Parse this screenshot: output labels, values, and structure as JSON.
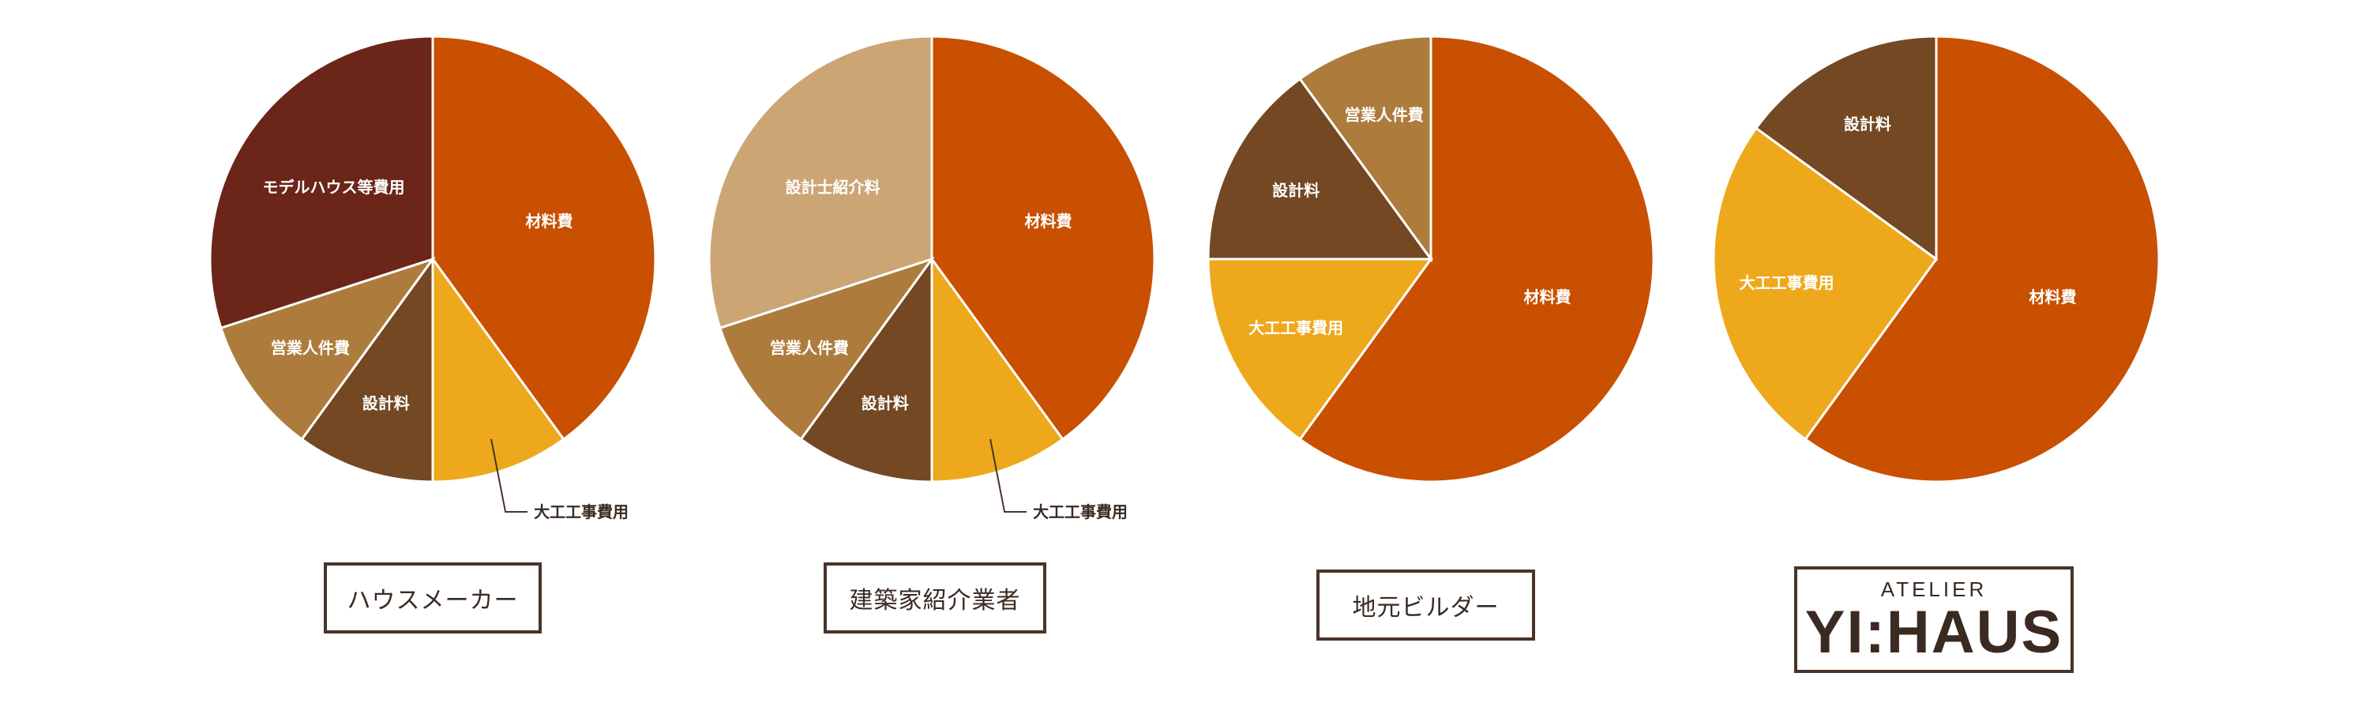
{
  "chart_data": [
    {
      "type": "pie",
      "caption": "ハウスメーカー",
      "slices": [
        {
          "label": "材料費",
          "value": 40,
          "color": "#c85000"
        },
        {
          "label": "大工工事費用",
          "value": 10,
          "color": "#eda81c"
        },
        {
          "label": "設計料",
          "value": 10,
          "color": "#734823"
        },
        {
          "label": "営業人件費",
          "value": 10,
          "color": "#ad7c3c"
        },
        {
          "label": "モデルハウス等費用",
          "value": 30,
          "color": "#6b2519"
        }
      ]
    },
    {
      "type": "pie",
      "caption": "建築家紹介業者",
      "slices": [
        {
          "label": "材料費",
          "value": 40,
          "color": "#c85000"
        },
        {
          "label": "大工工事費用",
          "value": 10,
          "color": "#eda81c"
        },
        {
          "label": "設計料",
          "value": 10,
          "color": "#734823"
        },
        {
          "label": "営業人件費",
          "value": 10,
          "color": "#ad7c3c"
        },
        {
          "label": "設計士紹介料",
          "value": 30,
          "color": "#cca575"
        }
      ]
    },
    {
      "type": "pie",
      "caption": "地元ビルダー",
      "slices": [
        {
          "label": "材料費",
          "value": 60,
          "color": "#c85000"
        },
        {
          "label": "大工工事費用",
          "value": 15,
          "color": "#eda81c"
        },
        {
          "label": "設計料",
          "value": 15,
          "color": "#734823"
        },
        {
          "label": "営業人件費",
          "value": 10,
          "color": "#ad7c3c"
        }
      ]
    },
    {
      "type": "pie",
      "caption_logo": {
        "top": "ATELIER",
        "main": "YI:HAUS"
      },
      "slices": [
        {
          "label": "材料費",
          "value": 60,
          "color": "#c85000"
        },
        {
          "label": "大工工事費用",
          "value": 25,
          "color": "#eda81c"
        },
        {
          "label": "設計料",
          "value": 15,
          "color": "#734823"
        }
      ]
    }
  ]
}
